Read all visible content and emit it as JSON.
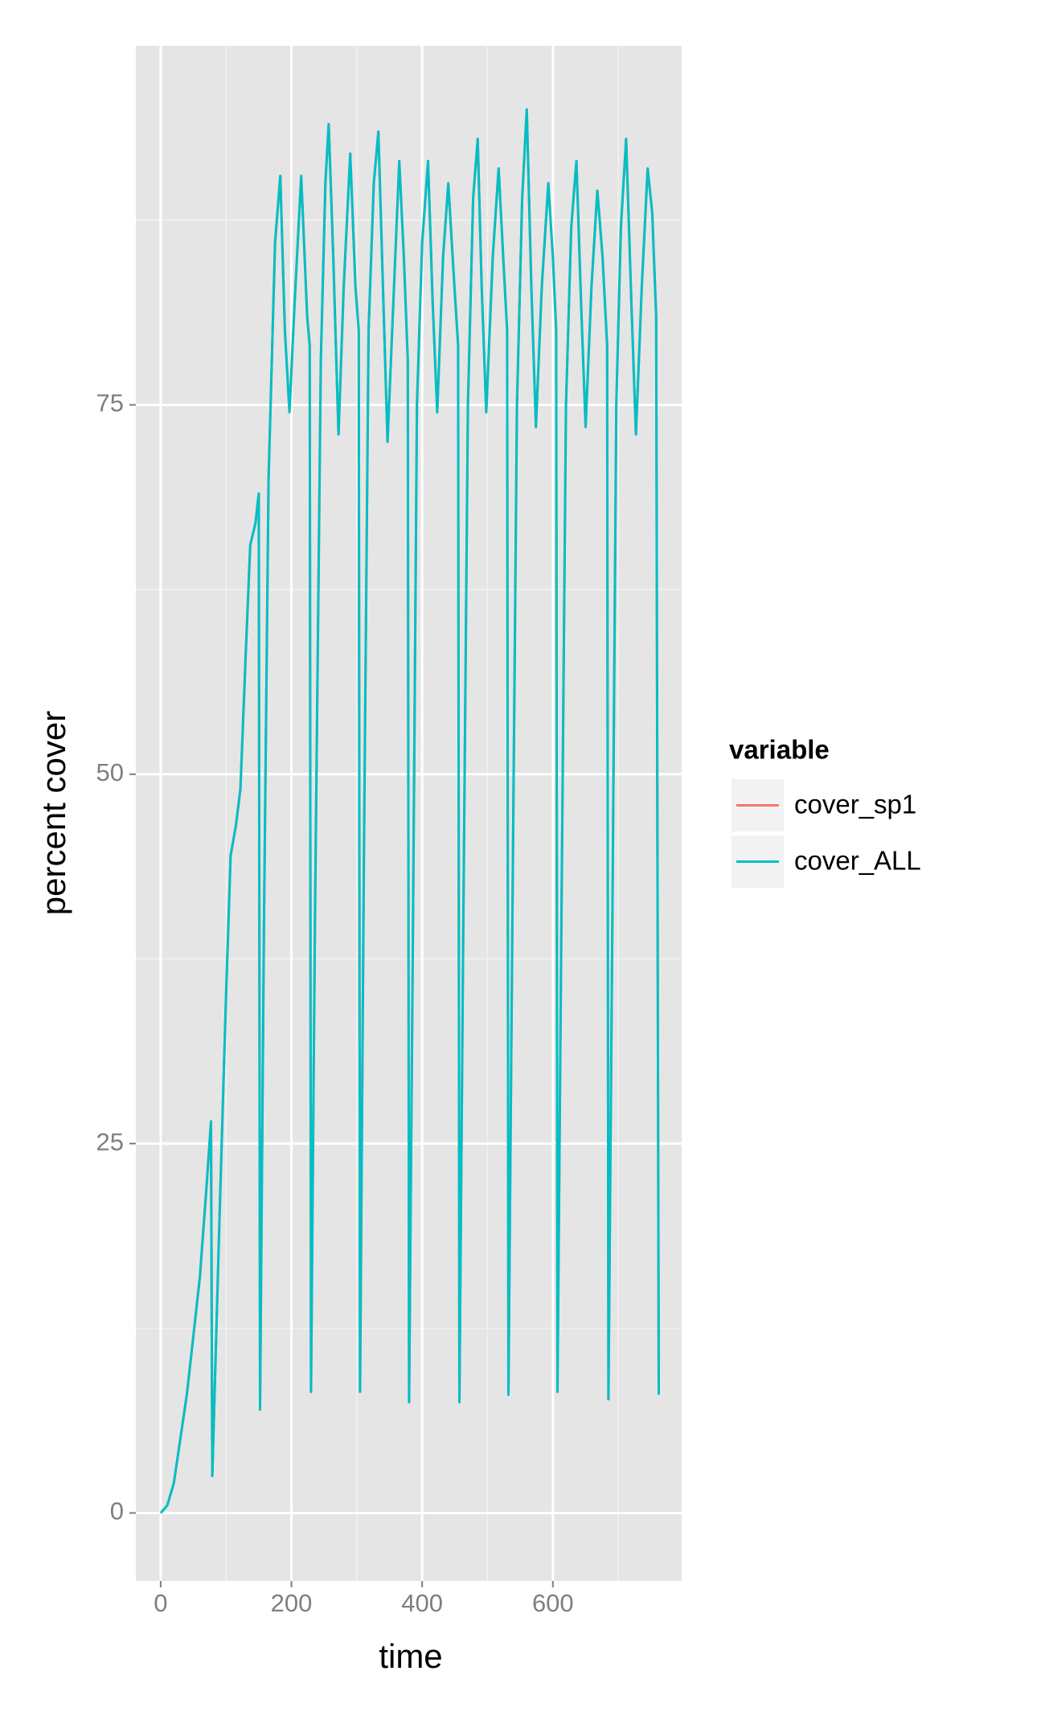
{
  "chart_data": {
    "type": "line",
    "x_label": "time",
    "y_label": "percent cover",
    "legend_title": "variable",
    "xlim": [
      -38,
      797
    ],
    "ylim": [
      -4.6,
      99.3
    ],
    "xticks": [
      0,
      200,
      400,
      600
    ],
    "yticks": [
      0,
      25,
      50,
      75
    ],
    "grid": true,
    "legend": "right",
    "x": [
      0,
      10,
      20,
      30,
      40,
      50,
      60,
      70,
      77,
      79,
      90,
      100,
      107,
      115,
      122,
      130,
      137,
      145,
      150,
      152,
      158,
      165,
      175,
      183,
      190,
      197,
      205,
      215,
      224,
      228,
      230,
      236,
      245,
      252,
      257,
      264,
      272,
      280,
      290,
      298,
      303,
      305,
      311,
      318,
      326,
      333,
      340,
      347,
      356,
      365,
      372,
      378,
      380,
      386,
      392,
      400,
      409,
      416,
      423,
      432,
      440,
      448,
      455,
      457,
      463,
      470,
      478,
      485,
      491,
      498,
      508,
      517,
      524,
      530,
      532,
      538,
      545,
      553,
      560,
      567,
      574,
      583,
      593,
      600,
      605,
      607,
      613,
      620,
      628,
      636,
      643,
      650,
      659,
      668,
      676,
      683,
      685,
      691,
      697,
      704,
      712,
      720,
      727,
      736,
      745,
      752,
      758,
      762
    ],
    "series": [
      {
        "name": "cover_sp1",
        "color": "#f8766d",
        "values": [
          0,
          0.5,
          2,
          5,
          8,
          12,
          16,
          22,
          26.5,
          2.5,
          20,
          35,
          44.5,
          46.5,
          49,
          58,
          65.5,
          67,
          69,
          7,
          40,
          70,
          86,
          90.5,
          80,
          74.5,
          82,
          90.5,
          81,
          79,
          8.2,
          40,
          78,
          90,
          94,
          85,
          73,
          83,
          92,
          83,
          80,
          8.2,
          45,
          80,
          90,
          93.5,
          83,
          72.5,
          82,
          91.5,
          85,
          78,
          7.5,
          40,
          75,
          86,
          91.5,
          82,
          74.5,
          85,
          90,
          84,
          79,
          7.5,
          40,
          75,
          89,
          93,
          83,
          74.5,
          85,
          91,
          85,
          80,
          8,
          40,
          75,
          89,
          95,
          83,
          73.5,
          83,
          90,
          85,
          80,
          8.2,
          40,
          75,
          87,
          91.5,
          82,
          73.5,
          83,
          89.5,
          85,
          79,
          7.7,
          40,
          75,
          87,
          93,
          82,
          73,
          83,
          91,
          88,
          81,
          8
        ]
      },
      {
        "name": "cover_ALL",
        "color": "#00bfc4",
        "values": [
          0,
          0.5,
          2,
          5,
          8,
          12,
          16,
          22,
          26.5,
          2.5,
          20,
          35,
          44.5,
          46.5,
          49,
          58,
          65.5,
          67,
          69,
          7,
          40,
          70,
          86,
          90.5,
          80,
          74.5,
          82,
          90.5,
          81,
          79,
          8.2,
          40,
          78,
          90,
          94,
          85,
          73,
          83,
          92,
          83,
          80,
          8.2,
          45,
          80,
          90,
          93.5,
          83,
          72.5,
          82,
          91.5,
          85,
          78,
          7.5,
          40,
          75,
          86,
          91.5,
          82,
          74.5,
          85,
          90,
          84,
          79,
          7.5,
          40,
          75,
          89,
          93,
          83,
          74.5,
          85,
          91,
          85,
          80,
          8,
          40,
          75,
          89,
          95,
          83,
          73.5,
          83,
          90,
          85,
          80,
          8.2,
          40,
          75,
          87,
          91.5,
          82,
          73.5,
          83,
          89.5,
          85,
          79,
          7.7,
          40,
          75,
          87,
          93,
          82,
          73,
          83,
          91,
          88,
          81,
          8
        ]
      }
    ]
  }
}
